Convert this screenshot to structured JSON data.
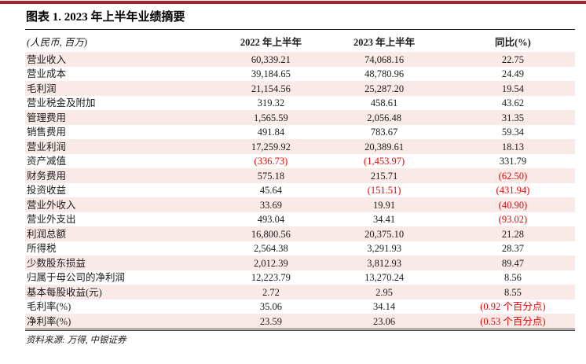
{
  "colors": {
    "accent_bar": "#A81E2B",
    "row_stripe": "#F9E9E7",
    "negative_text": "#EE0000"
  },
  "title": "图表 1. 2023 年上半年业绩摘要",
  "table": {
    "unit_label": "(人民币, 百万)",
    "columns": [
      "2022 年上半年",
      "2023 年上半年",
      "同比(%)"
    ],
    "rows": [
      {
        "label": "营业收入",
        "y2022": "60,339.21",
        "y2023": "74,068.16",
        "yoy": "22.75"
      },
      {
        "label": "营业成本",
        "y2022": "39,184.65",
        "y2023": "48,780.96",
        "yoy": "24.49"
      },
      {
        "label": "毛利润",
        "y2022": "21,154.56",
        "y2023": "25,287.20",
        "yoy": "19.54"
      },
      {
        "label": "营业税金及附加",
        "y2022": "319.32",
        "y2023": "458.61",
        "yoy": "43.62"
      },
      {
        "label": "管理费用",
        "y2022": "1,565.59",
        "y2023": "2,056.48",
        "yoy": "31.35"
      },
      {
        "label": "销售费用",
        "y2022": "491.84",
        "y2023": "783.67",
        "yoy": "59.34"
      },
      {
        "label": "营业利润",
        "y2022": "17,259.92",
        "y2023": "20,389.61",
        "yoy": "18.13"
      },
      {
        "label": "资产减值",
        "y2022": "(336.73)",
        "y2023": "(1,453.97)",
        "yoy": "331.79"
      },
      {
        "label": "财务费用",
        "y2022": "575.18",
        "y2023": "215.71",
        "yoy": "(62.50)"
      },
      {
        "label": "投资收益",
        "y2022": "45.64",
        "y2023": "(151.51)",
        "yoy": "(431.94)"
      },
      {
        "label": "营业外收入",
        "y2022": "33.69",
        "y2023": "19.91",
        "yoy": "(40.90)"
      },
      {
        "label": "营业外支出",
        "y2022": "493.04",
        "y2023": "34.41",
        "yoy": "(93.02)"
      },
      {
        "label": "利润总额",
        "y2022": "16,800.56",
        "y2023": "20,375.10",
        "yoy": "21.28"
      },
      {
        "label": "所得税",
        "y2022": "2,564.38",
        "y2023": "3,291.93",
        "yoy": "28.37"
      },
      {
        "label": "少数股东损益",
        "y2022": "2,012.39",
        "y2023": "3,812.93",
        "yoy": "89.47"
      },
      {
        "label": "归属于母公司的净利润",
        "y2022": "12,223.79",
        "y2023": "13,270.24",
        "yoy": "8.56"
      },
      {
        "label": "基本每股收益(元)",
        "y2022": "2.72",
        "y2023": "2.95",
        "yoy": "8.55"
      },
      {
        "label": "毛利率(%)",
        "y2022": "35.06",
        "y2023": "34.14",
        "yoy": "(0.92 个百分点)"
      },
      {
        "label": "净利率(%)",
        "y2022": "23.59",
        "y2023": "23.06",
        "yoy": "(0.53 个百分点)"
      }
    ]
  },
  "footer": {
    "source": "资料来源: 万得, 中银证券"
  }
}
